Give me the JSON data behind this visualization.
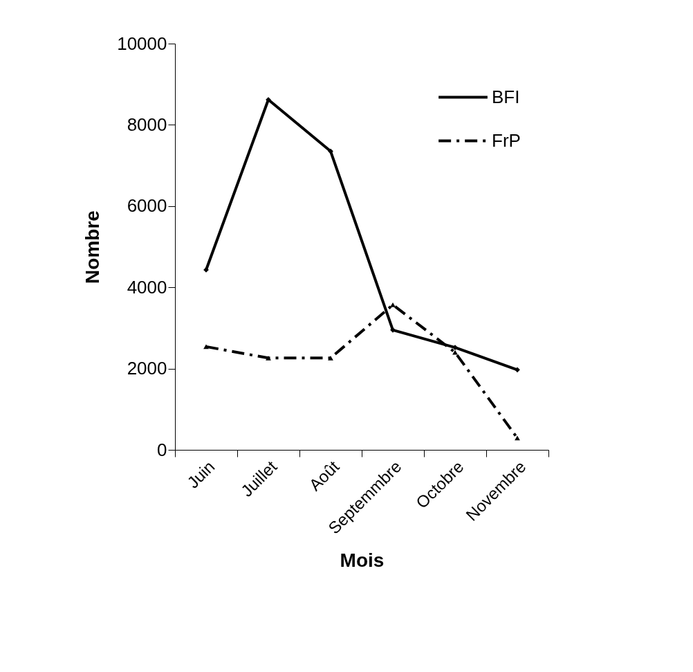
{
  "chart_data": {
    "type": "line",
    "xlabel": "Mois",
    "ylabel": "Nombre",
    "categories": [
      "Juin",
      "Juillet",
      "Août",
      "Septemmbre",
      "Octobre",
      "Novembre"
    ],
    "series": [
      {
        "name": "BFI",
        "color": "#000000",
        "marker": "diamond",
        "line_style": "solid",
        "values": [
          4430,
          8620,
          7350,
          2950,
          2520,
          1970
        ]
      },
      {
        "name": "FrP",
        "color": "#000000",
        "marker": "triangle",
        "line_style": "dashed",
        "values": [
          2540,
          2260,
          2260,
          3570,
          2400,
          290
        ]
      }
    ],
    "ylim": [
      0,
      10000
    ],
    "yticks": [
      0,
      2000,
      4000,
      6000,
      8000,
      10000
    ],
    "grid": false,
    "legend": "top right"
  }
}
